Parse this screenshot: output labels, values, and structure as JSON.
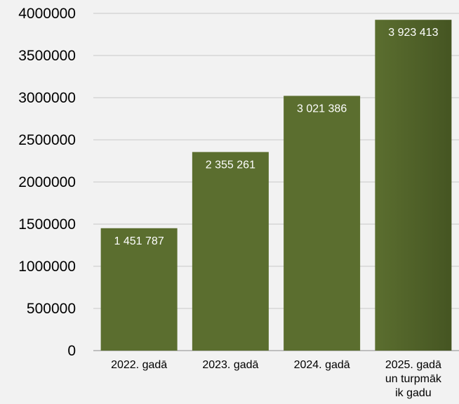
{
  "chart_data": {
    "type": "bar",
    "categories": [
      "2022. gadā",
      "2023. gadā",
      "2024. gadā",
      "2025. gadā un turpmāk ik gadu"
    ],
    "category_lines": [
      [
        "2022. gadā"
      ],
      [
        "2023. gadā"
      ],
      [
        "2024. gadā"
      ],
      [
        "2025. gadā",
        "un turpmāk",
        "ik gadu"
      ]
    ],
    "values": [
      1451787,
      2355261,
      3021386,
      3923413
    ],
    "data_labels": [
      "1 451 787",
      "2 355 261",
      "3 021 386",
      "3 923 413"
    ],
    "ylim": [
      0,
      4000000
    ],
    "y_ticks": [
      0,
      500000,
      1000000,
      1500000,
      2000000,
      2500000,
      3000000,
      3500000,
      4000000
    ],
    "y_tick_labels": [
      "0",
      "500000",
      "1000000",
      "1500000",
      "2000000",
      "2500000",
      "3000000",
      "3500000",
      "4000000"
    ],
    "grid": true,
    "colors": {
      "bar": "#5b6e2f",
      "bar_dark": "#455522",
      "grid": "#c8c8c8",
      "label": "#ffffff",
      "text": "#000000"
    }
  }
}
